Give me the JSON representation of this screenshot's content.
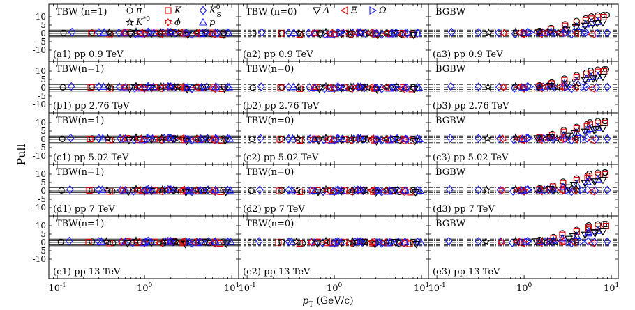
{
  "chart_data": {
    "type": "scatter",
    "figure_ylabel": "Pull",
    "xlabel": "p_T (GeV/c)",
    "xlabel_italic": "p",
    "xlabel_sub": "T",
    "xlabel_units": "(GeV/c)",
    "xscale": "log",
    "xlim": [
      0.08,
      12
    ],
    "ylim": [
      -14,
      14
    ],
    "x_ticks": [
      0.1,
      1,
      10
    ],
    "x_tick_labels": [
      [
        "10",
        "-1"
      ],
      [
        "10",
        "0"
      ],
      [
        "10",
        "1"
      ]
    ],
    "y_ticks": [
      -10,
      -5,
      0,
      5,
      10
    ],
    "y_tick_labels": [
      "-10",
      "-5",
      "0",
      "5",
      "10"
    ],
    "reference_lines": [
      -2,
      -1,
      0,
      1,
      2
    ],
    "columns": [
      {
        "model": "TBW (n=1)",
        "alt_model": "TBW(n=1)"
      },
      {
        "model": "TBW (n=0)",
        "alt_model": "TBW(n=0)"
      },
      {
        "model": "BGBW",
        "alt_model": "BGBW"
      }
    ],
    "rows": [
      {
        "energy": "pp 0.9 TeV",
        "index": "a"
      },
      {
        "energy": "pp 2.76 TeV",
        "index": "b"
      },
      {
        "energy": "pp 5.02 TeV",
        "index": "c"
      },
      {
        "energy": "pp 7 TeV",
        "index": "d"
      },
      {
        "energy": "pp 13 TeV",
        "index": "e"
      }
    ],
    "panel_titles": [
      [
        "TBW (n=1)",
        "TBW (n=0)",
        "BGBW"
      ],
      [
        "TBW(n=1)",
        "TBW(n=0)",
        "BGBW"
      ],
      [
        "TBW(n=1)",
        "TBW(n=0)",
        "BGBW"
      ],
      [
        "TBW(n=1)",
        "TBW(n=0)",
        "BGBW"
      ],
      [
        "TBW(n=1)",
        "TBW(n=0)",
        "BGBW"
      ]
    ],
    "panel_labels": [
      [
        "(a1) pp 0.9 TeV",
        "(a2) pp 0.9 TeV",
        "(a3) pp 0.9 TeV"
      ],
      [
        "(b1) pp 2.76 TeV",
        "(b2) pp 2.76 TeV",
        "(b3) pp 2.76 TeV"
      ],
      [
        "(c1) pp 5.02 TeV",
        "(c2) pp 5.02 TeV",
        "(c3) pp 5.02 TeV"
      ],
      [
        "(d1) pp 7 TeV",
        "(d2) pp 7 TeV",
        "(d3) pp 7 TeV"
      ],
      [
        "(e1) pp 13 TeV",
        "(e2) pp 13 TeV",
        "(e3) pp 13 TeV"
      ]
    ],
    "legend": [
      {
        "key": "pi",
        "label": "π",
        "marker": "circle",
        "color": "#000000"
      },
      {
        "key": "K",
        "label": "K",
        "marker": "square",
        "color": "#dd0000"
      },
      {
        "key": "K0S",
        "label": "K",
        "label_sup": "0",
        "label_sub": "S",
        "marker": "diamond",
        "color": "#1a1aff"
      },
      {
        "key": "Kstar",
        "label": "K",
        "label_sup": "*0",
        "marker": "star",
        "color": "#000000"
      },
      {
        "key": "phi",
        "label": "ϕ",
        "marker": "hexstar",
        "color": "#dd0000"
      },
      {
        "key": "p",
        "label": "p",
        "marker": "triangle-up",
        "color": "#1a1aff"
      },
      {
        "key": "Lambda",
        "label": "Λ",
        "marker": "triangle-down",
        "color": "#000000"
      },
      {
        "key": "Xi",
        "label": "Ξ",
        "marker": "triangle-left",
        "color": "#dd0000"
      },
      {
        "key": "Omega",
        "label": "Ω",
        "marker": "triangle-right",
        "color": "#1a1aff"
      }
    ],
    "series": [
      {
        "name": "pi",
        "column": "all",
        "x": [
          0.12,
          0.25,
          0.4,
          0.7,
          1.0,
          1.5,
          2.0,
          3.0,
          4.5,
          6.0,
          8.0
        ],
        "y": [
          0.3,
          0.5,
          -0.3,
          0.6,
          0.2,
          -0.5,
          0.4,
          -0.2,
          0.3,
          -0.4,
          0.5
        ]
      },
      {
        "name": "K",
        "column": "all",
        "x": [
          0.25,
          0.4,
          0.6,
          0.9,
          1.3,
          2.0,
          3.0,
          4.5,
          6.0,
          8.0
        ],
        "y": [
          0.2,
          -0.4,
          0.5,
          -0.1,
          0.3,
          0.6,
          -0.3,
          0.2,
          0.4,
          -0.6
        ]
      },
      {
        "name": "K0S",
        "column": "all",
        "x": [
          0.15,
          0.3,
          0.5,
          0.8,
          1.1,
          1.6,
          2.3,
          3.5,
          5.0,
          7.0,
          9.0
        ],
        "y": [
          0.8,
          0.6,
          0.4,
          -0.2,
          0.9,
          0.5,
          0.3,
          -0.5,
          0.6,
          0.2,
          0.4
        ]
      },
      {
        "name": "Kstar",
        "column": "all",
        "x": [
          0.4,
          0.8,
          1.5,
          2.5,
          4.0
        ],
        "y": [
          0.5,
          1.0,
          0.7,
          0.3,
          0.8
        ]
      },
      {
        "name": "phi",
        "column": "all",
        "x": [
          0.6,
          1.0,
          1.8,
          3.0
        ],
        "y": [
          0.3,
          -0.5,
          0.6,
          0.2
        ]
      },
      {
        "name": "p",
        "column": "all",
        "x": [
          0.35,
          0.6,
          0.9,
          1.3,
          2.0,
          3.0,
          4.5,
          6.5,
          9.0
        ],
        "y": [
          0.7,
          0.4,
          -0.3,
          0.5,
          0.9,
          0.3,
          -0.2,
          0.6,
          0.4
        ]
      },
      {
        "name": "Lambda",
        "column": "all",
        "x": [
          0.7,
          1.2,
          2.0,
          3.2,
          5.0,
          8.0
        ],
        "y": [
          -0.6,
          -0.2,
          0.3,
          -1.0,
          0.4,
          -0.8
        ]
      },
      {
        "name": "Xi",
        "column": "all",
        "x": [
          0.9,
          1.5,
          2.5,
          4.0,
          6.0
        ],
        "y": [
          0.4,
          -0.3,
          0.6,
          0.2,
          -0.5
        ]
      },
      {
        "name": "Omega",
        "column": "all",
        "x": [
          1.2,
          2.0,
          3.0,
          5.0
        ],
        "y": [
          0.6,
          0.9,
          0.2,
          0.5
        ]
      },
      {
        "name": "pi",
        "column": "BGBW",
        "x": [
          1.0,
          1.5,
          2.0,
          3.0,
          4.0,
          5.0,
          6.0,
          7.0,
          8.0,
          9.0
        ],
        "y": [
          0.2,
          1.5,
          3.2,
          5.5,
          7.5,
          9.0,
          10.2,
          10.8,
          11.0,
          11.0
        ]
      },
      {
        "name": "K",
        "column": "BGBW",
        "x": [
          1.0,
          1.5,
          2.0,
          3.0,
          4.0,
          5.0,
          6.0,
          7.0,
          8.0
        ],
        "y": [
          0.0,
          1.0,
          2.5,
          4.5,
          6.5,
          7.8,
          8.8,
          9.5,
          9.8
        ]
      },
      {
        "name": "p",
        "column": "BGBW",
        "x": [
          1.0,
          1.5,
          2.0,
          3.0,
          4.0,
          5.0,
          6.0,
          7.0
        ],
        "y": [
          0.3,
          0.5,
          1.2,
          2.5,
          4.0,
          5.5,
          6.5,
          7.0
        ]
      },
      {
        "name": "Lambda",
        "column": "BGBW",
        "x": [
          1.5,
          2.0,
          3.0,
          4.0,
          5.0,
          6.0,
          7.0,
          8.0
        ],
        "y": [
          0.5,
          1.0,
          2.0,
          3.5,
          4.5,
          5.5,
          6.0,
          6.5
        ]
      }
    ]
  }
}
